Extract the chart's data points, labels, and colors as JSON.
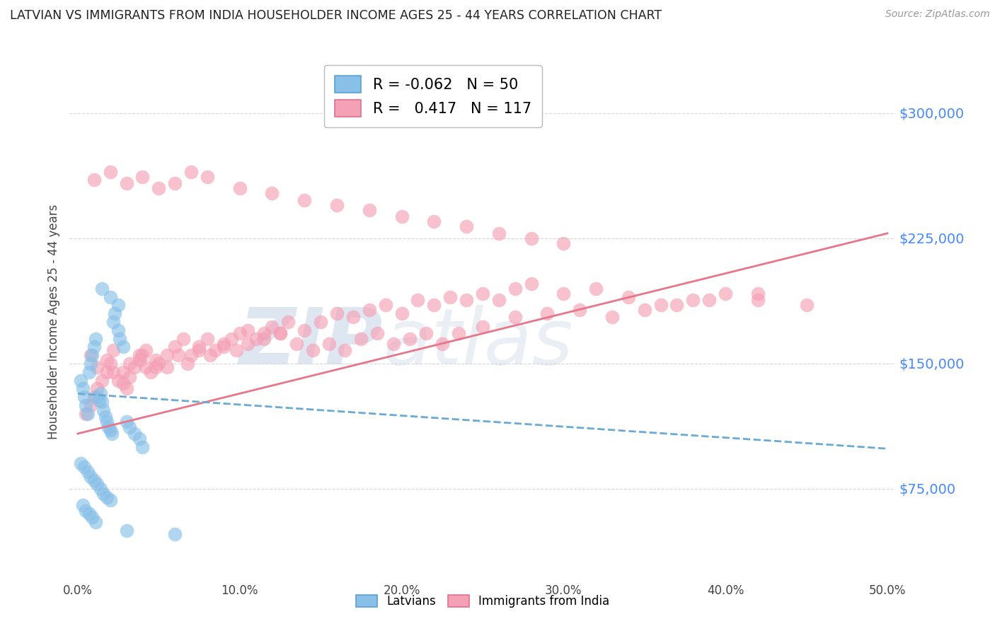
{
  "title": "LATVIAN VS IMMIGRANTS FROM INDIA HOUSEHOLDER INCOME AGES 25 - 44 YEARS CORRELATION CHART",
  "source": "Source: ZipAtlas.com",
  "ylabel": "Householder Income Ages 25 - 44 years",
  "xlabel_ticks": [
    "0.0%",
    "10.0%",
    "20.0%",
    "30.0%",
    "40.0%",
    "50.0%"
  ],
  "xlabel_vals": [
    0.0,
    0.1,
    0.2,
    0.3,
    0.4,
    0.5
  ],
  "ytick_labels": [
    "$75,000",
    "$150,000",
    "$225,000",
    "$300,000"
  ],
  "ytick_vals": [
    75000,
    150000,
    225000,
    300000
  ],
  "ylim": [
    20000,
    330000
  ],
  "xlim": [
    -0.005,
    0.505
  ],
  "legend_latvian_R": "-0.062",
  "legend_latvian_N": "50",
  "legend_india_R": "0.417",
  "legend_india_N": "117",
  "latvian_color": "#88C0E8",
  "india_color": "#F4A0B5",
  "latvian_line_color": "#6AAAD4",
  "india_line_color": "#E8758A",
  "grid_color": "#CCCCCC",
  "background_color": "#FFFFFF",
  "watermark_zip": "ZIP",
  "watermark_atlas": "atlas",
  "watermark_color": "#C8D8E8",
  "latvian_x": [
    0.002,
    0.003,
    0.004,
    0.005,
    0.006,
    0.007,
    0.008,
    0.009,
    0.01,
    0.011,
    0.012,
    0.013,
    0.014,
    0.015,
    0.016,
    0.017,
    0.018,
    0.019,
    0.02,
    0.021,
    0.022,
    0.023,
    0.025,
    0.026,
    0.028,
    0.03,
    0.032,
    0.035,
    0.038,
    0.04,
    0.002,
    0.004,
    0.006,
    0.008,
    0.01,
    0.012,
    0.014,
    0.016,
    0.018,
    0.02,
    0.003,
    0.005,
    0.007,
    0.009,
    0.011,
    0.015,
    0.02,
    0.025,
    0.03,
    0.06
  ],
  "latvian_y": [
    140000,
    135000,
    130000,
    125000,
    120000,
    145000,
    150000,
    155000,
    160000,
    165000,
    130000,
    128000,
    132000,
    127000,
    122000,
    118000,
    115000,
    112000,
    110000,
    108000,
    175000,
    180000,
    170000,
    165000,
    160000,
    115000,
    112000,
    108000,
    105000,
    100000,
    90000,
    88000,
    85000,
    82000,
    80000,
    78000,
    75000,
    72000,
    70000,
    68000,
    65000,
    62000,
    60000,
    58000,
    55000,
    195000,
    190000,
    185000,
    50000,
    48000
  ],
  "india_x": [
    0.005,
    0.008,
    0.01,
    0.012,
    0.015,
    0.018,
    0.02,
    0.022,
    0.025,
    0.028,
    0.03,
    0.032,
    0.035,
    0.038,
    0.04,
    0.042,
    0.045,
    0.048,
    0.05,
    0.055,
    0.06,
    0.065,
    0.07,
    0.075,
    0.08,
    0.085,
    0.09,
    0.095,
    0.1,
    0.105,
    0.11,
    0.115,
    0.12,
    0.125,
    0.13,
    0.14,
    0.15,
    0.16,
    0.17,
    0.18,
    0.19,
    0.2,
    0.21,
    0.22,
    0.23,
    0.24,
    0.25,
    0.26,
    0.27,
    0.28,
    0.3,
    0.32,
    0.34,
    0.36,
    0.38,
    0.4,
    0.42,
    0.45,
    0.008,
    0.012,
    0.018,
    0.022,
    0.028,
    0.032,
    0.038,
    0.042,
    0.048,
    0.055,
    0.062,
    0.068,
    0.075,
    0.082,
    0.09,
    0.098,
    0.105,
    0.115,
    0.125,
    0.135,
    0.145,
    0.155,
    0.165,
    0.175,
    0.185,
    0.195,
    0.205,
    0.215,
    0.225,
    0.235,
    0.25,
    0.27,
    0.29,
    0.31,
    0.33,
    0.35,
    0.37,
    0.39,
    0.42,
    0.01,
    0.02,
    0.03,
    0.04,
    0.05,
    0.06,
    0.07,
    0.08,
    0.1,
    0.12,
    0.14,
    0.16,
    0.18,
    0.2,
    0.22,
    0.24,
    0.26,
    0.28,
    0.3
  ],
  "india_y": [
    120000,
    125000,
    130000,
    135000,
    140000,
    145000,
    150000,
    145000,
    140000,
    138000,
    135000,
    142000,
    148000,
    152000,
    155000,
    158000,
    145000,
    148000,
    150000,
    155000,
    160000,
    165000,
    155000,
    160000,
    165000,
    158000,
    162000,
    165000,
    168000,
    170000,
    165000,
    168000,
    172000,
    168000,
    175000,
    170000,
    175000,
    180000,
    178000,
    182000,
    185000,
    180000,
    188000,
    185000,
    190000,
    188000,
    192000,
    188000,
    195000,
    198000,
    192000,
    195000,
    190000,
    185000,
    188000,
    192000,
    188000,
    185000,
    155000,
    148000,
    152000,
    158000,
    145000,
    150000,
    155000,
    148000,
    152000,
    148000,
    155000,
    150000,
    158000,
    155000,
    160000,
    158000,
    162000,
    165000,
    168000,
    162000,
    158000,
    162000,
    158000,
    165000,
    168000,
    162000,
    165000,
    168000,
    162000,
    168000,
    172000,
    178000,
    180000,
    182000,
    178000,
    182000,
    185000,
    188000,
    192000,
    260000,
    265000,
    258000,
    262000,
    255000,
    258000,
    265000,
    262000,
    255000,
    252000,
    248000,
    245000,
    242000,
    238000,
    235000,
    232000,
    228000,
    225000,
    222000
  ],
  "latvian_line_x": [
    0.0,
    0.5
  ],
  "latvian_line_y": [
    132000,
    99000
  ],
  "india_line_x": [
    0.0,
    0.5
  ],
  "india_line_y": [
    108000,
    228000
  ]
}
